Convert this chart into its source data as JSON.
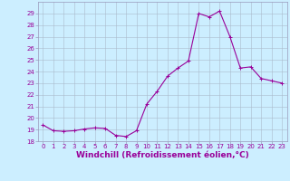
{
  "hours": [
    0,
    1,
    2,
    3,
    4,
    5,
    6,
    7,
    8,
    9,
    10,
    11,
    12,
    13,
    14,
    15,
    16,
    17,
    18,
    19,
    20,
    21,
    22,
    23
  ],
  "values": [
    19.4,
    18.9,
    18.85,
    18.9,
    19.05,
    19.15,
    19.1,
    18.5,
    18.4,
    18.9,
    21.2,
    22.3,
    23.6,
    24.3,
    24.9,
    29.0,
    28.7,
    29.2,
    27.0,
    24.3,
    24.4,
    23.4,
    23.2,
    23.0
  ],
  "line_color": "#990099",
  "marker": "+",
  "marker_size": 3,
  "background_color": "#cceeff",
  "grid_color": "#aabbcc",
  "xlabel": "Windchill (Refroidissement éolien,°C)",
  "xlabel_color": "#990099",
  "ylim": [
    18,
    30
  ],
  "xlim": [
    -0.5,
    23.5
  ],
  "yticks": [
    18,
    19,
    20,
    21,
    22,
    23,
    24,
    25,
    26,
    27,
    28,
    29
  ],
  "xticks": [
    0,
    1,
    2,
    3,
    4,
    5,
    6,
    7,
    8,
    9,
    10,
    11,
    12,
    13,
    14,
    15,
    16,
    17,
    18,
    19,
    20,
    21,
    22,
    23
  ],
  "tick_color": "#990099",
  "tick_fontsize": 5.0,
  "xlabel_fontsize": 6.5,
  "spine_color": "#9999bb",
  "linewidth": 0.8,
  "markeredgewidth": 0.7
}
